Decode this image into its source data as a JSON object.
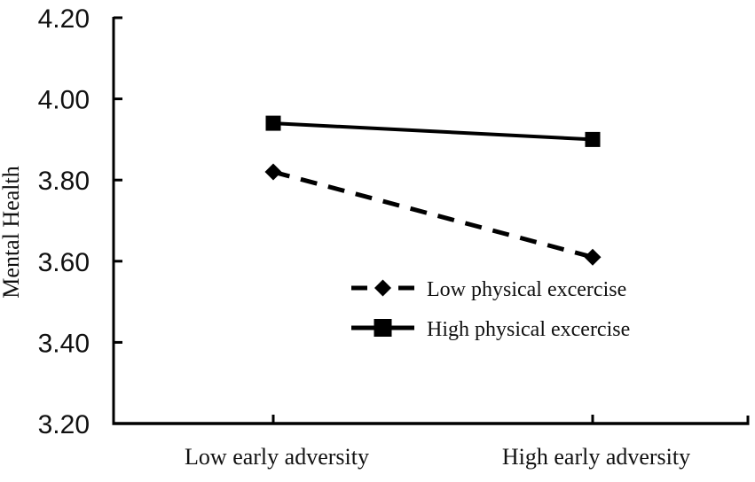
{
  "figure": {
    "background": "#ffffff",
    "ink": "#000000",
    "text_color": "#111111"
  },
  "chart_data": {
    "type": "line",
    "title": "",
    "xlabel": "",
    "ylabel": "Mental Health",
    "categories": [
      "Low early adversity",
      "High early adversity"
    ],
    "series": [
      {
        "name": "Low physical excercise",
        "values": [
          3.82,
          3.61
        ],
        "line_style": "dashed",
        "marker": "diamond",
        "color": "#000000"
      },
      {
        "name": "High physical excercise",
        "values": [
          3.94,
          3.9
        ],
        "line_style": "solid",
        "marker": "square",
        "color": "#000000"
      }
    ],
    "ylim": [
      3.2,
      4.2
    ],
    "y_ticks": [
      3.2,
      3.4,
      3.6,
      3.8,
      4.0,
      4.2
    ],
    "y_tick_labels": [
      "3.20",
      "3.40",
      "3.60",
      "3.80",
      "4.00",
      "4.20"
    ],
    "x_tick_count": 2,
    "grid": false,
    "legend_position": "inside-center-right",
    "axis_frame": "left-bottom-only"
  }
}
